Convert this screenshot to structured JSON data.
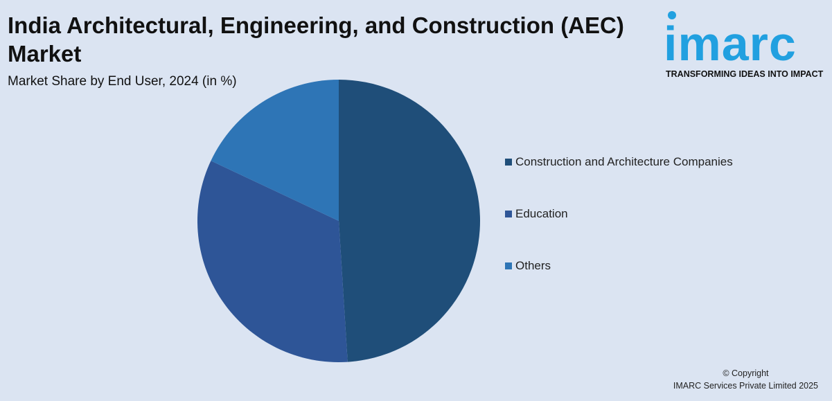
{
  "title": "India Architectural, Engineering, and Construction (AEC) Market",
  "subtitle": "Market Share by End User, 2024 (in %)",
  "logo": {
    "word": "imarc",
    "tagline": "TRANSFORMING IDEAS INTO IMPACT",
    "color": "#21a0e0"
  },
  "copyright": {
    "line1": "© Copyright",
    "line2": "IMARC Services Private Limited 2025"
  },
  "chart_data": {
    "type": "pie",
    "title": "India Architectural, Engineering, and Construction (AEC) Market",
    "subtitle": "Market Share by End User, 2024 (in %)",
    "legend_position": "right",
    "slices": [
      {
        "label": "Construction and Architecture Companies",
        "value": 49,
        "color": "#1f4e79"
      },
      {
        "label": "Education",
        "value": 33,
        "color": "#2e5597"
      },
      {
        "label": "Others",
        "value": 18,
        "color": "#2e75b6"
      }
    ]
  }
}
